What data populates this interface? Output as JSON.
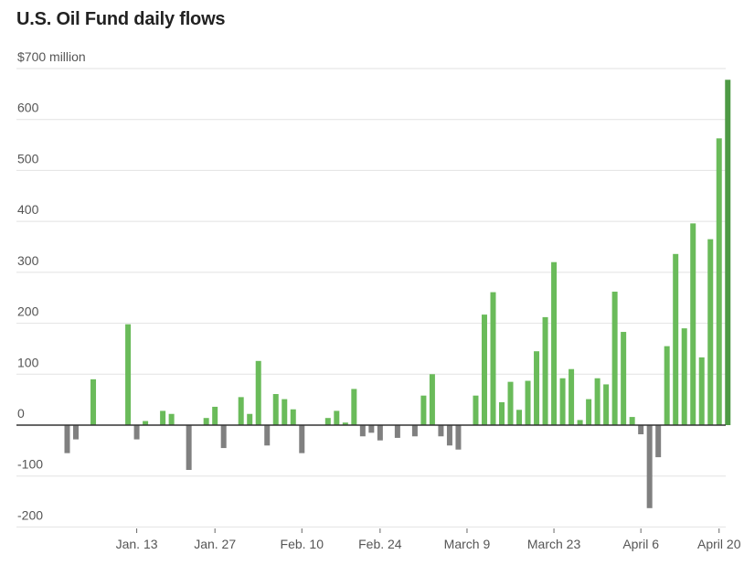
{
  "title": "U.S. Oil Fund daily flows",
  "chart_data": {
    "type": "bar",
    "title": "U.S. Oil Fund daily flows",
    "xlabel": "",
    "ylabel": "",
    "y_unit_label": "$700 million",
    "ylim": [
      -200,
      700
    ],
    "y_ticks": [
      {
        "value": 700,
        "label": "$700 million"
      },
      {
        "value": 600,
        "label": "600"
      },
      {
        "value": 500,
        "label": "500"
      },
      {
        "value": 400,
        "label": "400"
      },
      {
        "value": 300,
        "label": "300"
      },
      {
        "value": 200,
        "label": "200"
      },
      {
        "value": 100,
        "label": "100"
      },
      {
        "value": 0,
        "label": "0"
      },
      {
        "value": -100,
        "label": "-100"
      },
      {
        "value": -200,
        "label": "-200"
      }
    ],
    "x_ticks": [
      {
        "label": "Jan. 13",
        "index": 8
      },
      {
        "label": "Jan. 27",
        "index": 17
      },
      {
        "label": "Feb. 10",
        "index": 27
      },
      {
        "label": "Feb. 24",
        "index": 36
      },
      {
        "label": "March 9",
        "index": 46
      },
      {
        "label": "March 23",
        "index": 56
      },
      {
        "label": "April 6",
        "index": 66
      },
      {
        "label": "April 20",
        "index": 75
      }
    ],
    "grid": true,
    "colors": {
      "positive": "#6abb5a",
      "negative": "#808080",
      "latest": "#4e9a45"
    },
    "values": [
      -55,
      -28,
      0,
      90,
      0,
      0,
      0,
      198,
      -28,
      8,
      0,
      28,
      22,
      0,
      -88,
      0,
      14,
      36,
      -45,
      0,
      55,
      22,
      126,
      -40,
      61,
      51,
      31,
      -55,
      0,
      0,
      14,
      28,
      5,
      71,
      -22,
      -15,
      -30,
      0,
      -25,
      0,
      -22,
      58,
      100,
      -22,
      -40,
      -48,
      0,
      58,
      217,
      261,
      45,
      85,
      30,
      87,
      145,
      212,
      320,
      92,
      110,
      10,
      51,
      92,
      80,
      262,
      183,
      16,
      -18,
      -163,
      -63,
      155,
      336,
      190,
      396,
      133,
      365,
      563,
      678
    ]
  }
}
